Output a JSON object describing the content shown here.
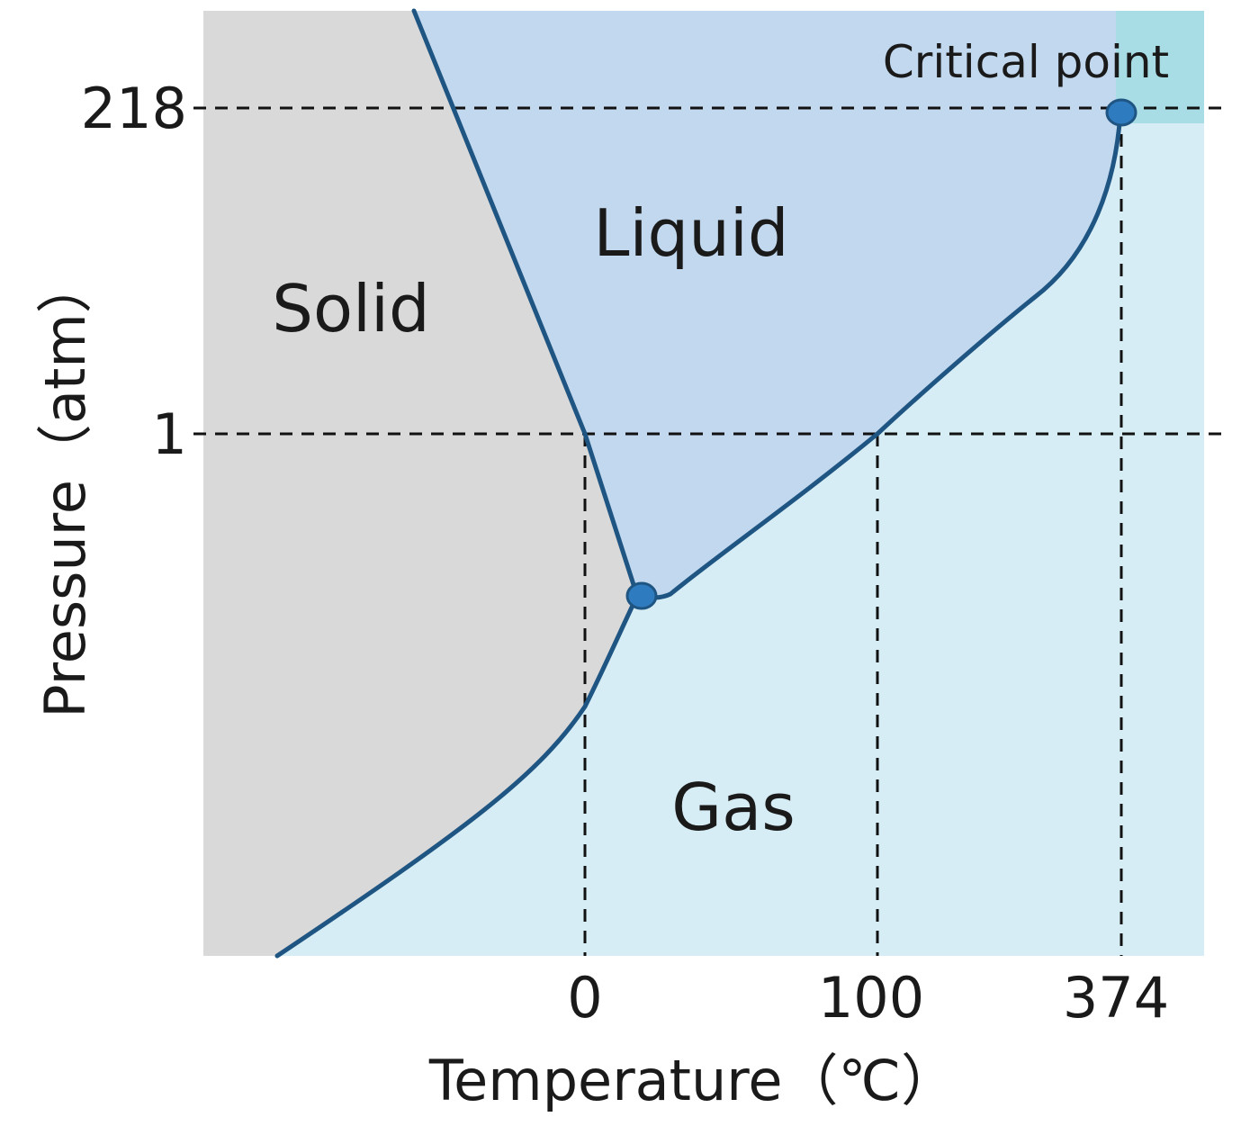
{
  "diagram": {
    "region_labels": {
      "solid": "Solid",
      "liquid": "Liquid",
      "gas": "Gas",
      "critical_point": "Critical point"
    },
    "axis_labels": {
      "x": "Temperature（℃）",
      "y": "Pressure（atm）"
    },
    "x_ticks": [
      "0",
      "100",
      "374"
    ],
    "y_ticks": [
      "218",
      "1"
    ],
    "colors": {
      "solid": "#d9d9d9",
      "liquid": "#c2d8ee",
      "gas": "#d6edf5",
      "supercritical": "#a8dde6",
      "curve": "#1f5582",
      "point_fill": "#2f7bbf",
      "dash": "#111111"
    }
  }
}
